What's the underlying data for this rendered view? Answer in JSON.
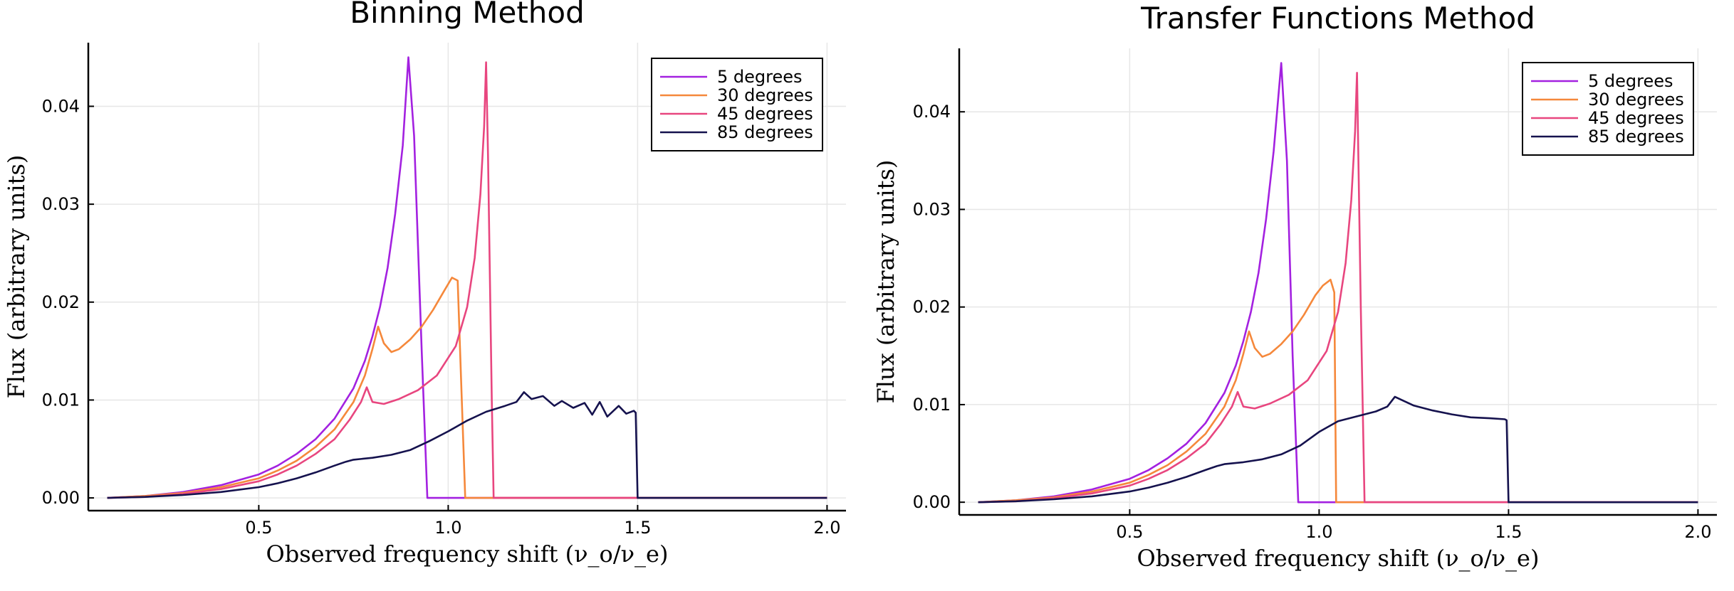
{
  "chart_data": [
    {
      "type": "line",
      "title": "Binning Method",
      "xlabel": "Observed frequency shift (ν_o/ν_e)",
      "ylabel": "Flux (arbitrary units)",
      "xlim": [
        0.05,
        2.05
      ],
      "ylim": [
        -0.0013,
        0.0465
      ],
      "xticks": [
        0.5,
        1.0,
        1.5,
        2.0
      ],
      "xtick_labels": [
        "0.5",
        "1.0",
        "1.5",
        "2.0"
      ],
      "yticks": [
        0.0,
        0.01,
        0.02,
        0.03,
        0.04
      ],
      "ytick_labels": [
        "0.00",
        "0.01",
        "0.02",
        "0.03",
        "0.04"
      ],
      "grid": true,
      "legend_position": "top-right",
      "series": [
        {
          "name": "5 degrees",
          "color": "#a321e0",
          "x": [
            0.1,
            0.2,
            0.3,
            0.4,
            0.5,
            0.55,
            0.6,
            0.65,
            0.7,
            0.75,
            0.78,
            0.8,
            0.82,
            0.84,
            0.86,
            0.88,
            0.895,
            0.91,
            0.93,
            0.945,
            2.0
          ],
          "y": [
            0.0,
            0.0002,
            0.0006,
            0.0013,
            0.0024,
            0.0033,
            0.0045,
            0.006,
            0.0081,
            0.0112,
            0.014,
            0.0165,
            0.0195,
            0.0235,
            0.029,
            0.036,
            0.045,
            0.037,
            0.015,
            0.0,
            0.0
          ]
        },
        {
          "name": "30 degrees",
          "color": "#f5883b",
          "x": [
            0.1,
            0.2,
            0.3,
            0.4,
            0.5,
            0.55,
            0.6,
            0.65,
            0.7,
            0.75,
            0.78,
            0.8,
            0.815,
            0.83,
            0.85,
            0.87,
            0.9,
            0.93,
            0.96,
            0.99,
            1.01,
            1.025,
            1.035,
            1.045,
            2.0
          ],
          "y": [
            0.0,
            0.0002,
            0.0005,
            0.0011,
            0.002,
            0.0028,
            0.0038,
            0.0052,
            0.007,
            0.0098,
            0.0125,
            0.0152,
            0.0175,
            0.0158,
            0.0149,
            0.0152,
            0.0162,
            0.0175,
            0.0192,
            0.0212,
            0.0225,
            0.0222,
            0.011,
            0.0,
            0.0
          ]
        },
        {
          "name": "45 degrees",
          "color": "#e8467f",
          "x": [
            0.1,
            0.2,
            0.3,
            0.4,
            0.5,
            0.55,
            0.6,
            0.65,
            0.7,
            0.74,
            0.77,
            0.785,
            0.8,
            0.83,
            0.87,
            0.92,
            0.97,
            1.02,
            1.05,
            1.07,
            1.085,
            1.095,
            1.1,
            1.105,
            1.115,
            1.12,
            2.0
          ],
          "y": [
            0.0,
            0.0001,
            0.0004,
            0.0009,
            0.0017,
            0.0024,
            0.0033,
            0.0045,
            0.006,
            0.008,
            0.0098,
            0.0113,
            0.0098,
            0.0096,
            0.0101,
            0.011,
            0.0125,
            0.0155,
            0.0195,
            0.0245,
            0.031,
            0.038,
            0.0445,
            0.035,
            0.01,
            0.0,
            0.0
          ]
        },
        {
          "name": "85 degrees",
          "color": "#15124e",
          "x": [
            0.1,
            0.2,
            0.3,
            0.4,
            0.5,
            0.55,
            0.6,
            0.65,
            0.7,
            0.73,
            0.75,
            0.8,
            0.85,
            0.9,
            0.95,
            1.0,
            1.05,
            1.1,
            1.15,
            1.18,
            1.2,
            1.22,
            1.25,
            1.28,
            1.3,
            1.33,
            1.36,
            1.38,
            1.4,
            1.42,
            1.45,
            1.47,
            1.49,
            1.495,
            1.5,
            2.0
          ],
          "y": [
            0.0,
            0.0001,
            0.0003,
            0.0006,
            0.0011,
            0.0015,
            0.002,
            0.0026,
            0.0033,
            0.0037,
            0.0039,
            0.0041,
            0.0044,
            0.0049,
            0.0058,
            0.0068,
            0.0079,
            0.0088,
            0.0094,
            0.0098,
            0.0108,
            0.0101,
            0.0104,
            0.0094,
            0.0099,
            0.0092,
            0.0097,
            0.0085,
            0.0098,
            0.0083,
            0.0094,
            0.0086,
            0.0089,
            0.0087,
            0.0,
            0.0
          ]
        }
      ]
    },
    {
      "type": "line",
      "title": "Transfer Functions Method",
      "xlabel": "Observed frequency shift (ν_o/ν_e)",
      "ylabel": "Flux (arbitrary units)",
      "xlim": [
        0.05,
        2.05
      ],
      "ylim": [
        -0.0013,
        0.0465
      ],
      "xticks": [
        0.5,
        1.0,
        1.5,
        2.0
      ],
      "xtick_labels": [
        "0.5",
        "1.0",
        "1.5",
        "2.0"
      ],
      "yticks": [
        0.0,
        0.01,
        0.02,
        0.03,
        0.04
      ],
      "ytick_labels": [
        "0.00",
        "0.01",
        "0.02",
        "0.03",
        "0.04"
      ],
      "grid": true,
      "legend_position": "top-right",
      "series": [
        {
          "name": "5 degrees",
          "color": "#a321e0",
          "x": [
            0.1,
            0.2,
            0.3,
            0.4,
            0.5,
            0.55,
            0.6,
            0.65,
            0.7,
            0.75,
            0.78,
            0.8,
            0.82,
            0.84,
            0.86,
            0.88,
            0.9,
            0.915,
            0.93,
            0.945,
            2.0
          ],
          "y": [
            0.0,
            0.0002,
            0.0006,
            0.0013,
            0.0024,
            0.0033,
            0.0045,
            0.006,
            0.0081,
            0.0112,
            0.014,
            0.0165,
            0.0195,
            0.0235,
            0.029,
            0.036,
            0.045,
            0.035,
            0.015,
            0.0,
            0.0
          ]
        },
        {
          "name": "30 degrees",
          "color": "#f5883b",
          "x": [
            0.1,
            0.2,
            0.3,
            0.4,
            0.5,
            0.55,
            0.6,
            0.65,
            0.7,
            0.75,
            0.78,
            0.8,
            0.815,
            0.83,
            0.85,
            0.87,
            0.9,
            0.93,
            0.96,
            0.99,
            1.01,
            1.03,
            1.04,
            1.045,
            2.0
          ],
          "y": [
            0.0,
            0.0002,
            0.0005,
            0.0011,
            0.002,
            0.0028,
            0.0038,
            0.0052,
            0.007,
            0.0098,
            0.0125,
            0.0152,
            0.0175,
            0.0158,
            0.0149,
            0.0152,
            0.0162,
            0.0175,
            0.0192,
            0.0212,
            0.0222,
            0.0228,
            0.0215,
            0.0,
            0.0
          ]
        },
        {
          "name": "45 degrees",
          "color": "#e8467f",
          "x": [
            0.1,
            0.2,
            0.3,
            0.4,
            0.5,
            0.55,
            0.6,
            0.65,
            0.7,
            0.74,
            0.77,
            0.785,
            0.8,
            0.83,
            0.87,
            0.92,
            0.97,
            1.02,
            1.05,
            1.07,
            1.085,
            1.095,
            1.1,
            1.11,
            1.12,
            2.0
          ],
          "y": [
            0.0,
            0.0001,
            0.0004,
            0.0009,
            0.0017,
            0.0024,
            0.0033,
            0.0045,
            0.006,
            0.008,
            0.0098,
            0.0113,
            0.0098,
            0.0096,
            0.0101,
            0.011,
            0.0125,
            0.0155,
            0.0195,
            0.0245,
            0.031,
            0.038,
            0.044,
            0.02,
            0.0,
            0.0
          ]
        },
        {
          "name": "85 degrees",
          "color": "#15124e",
          "x": [
            0.1,
            0.2,
            0.3,
            0.4,
            0.5,
            0.55,
            0.6,
            0.65,
            0.7,
            0.73,
            0.75,
            0.8,
            0.85,
            0.9,
            0.95,
            1.0,
            1.05,
            1.1,
            1.15,
            1.18,
            1.2,
            1.25,
            1.3,
            1.35,
            1.4,
            1.45,
            1.49,
            1.495,
            1.5,
            2.0
          ],
          "y": [
            0.0,
            0.0001,
            0.0003,
            0.0006,
            0.0011,
            0.0015,
            0.002,
            0.0026,
            0.0033,
            0.0037,
            0.0039,
            0.0041,
            0.0044,
            0.0049,
            0.0058,
            0.0072,
            0.0083,
            0.0088,
            0.0093,
            0.0098,
            0.0108,
            0.0099,
            0.0094,
            0.009,
            0.0087,
            0.0086,
            0.0085,
            0.0084,
            0.0,
            0.0
          ]
        }
      ]
    }
  ]
}
